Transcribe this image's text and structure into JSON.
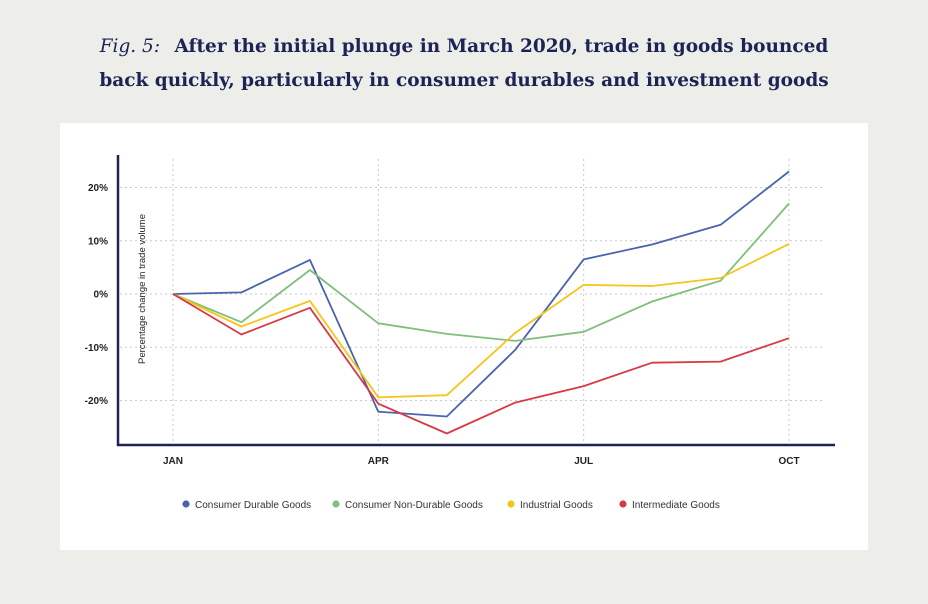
{
  "header": {
    "fig_label": "Fig. 5:",
    "title_line1": "After the initial plunge in March 2020, trade in goods bounced",
    "title_line2": "back quickly, particularly in consumer durables and investment goods"
  },
  "chart_data": {
    "type": "line",
    "x": [
      0,
      1,
      2,
      3,
      4,
      5,
      6,
      7,
      8,
      9
    ],
    "x_ticks": [
      {
        "x": 0,
        "label": "JAN"
      },
      {
        "x": 3,
        "label": "APR"
      },
      {
        "x": 6,
        "label": "JUL"
      },
      {
        "x": 9,
        "label": "OCT"
      }
    ],
    "ylabel": "Percentage change in trade volume",
    "ylim": [
      -28.5,
      25.5
    ],
    "y_ticks": [
      {
        "y": 20,
        "label": "20%"
      },
      {
        "y": 10,
        "label": "10%"
      },
      {
        "y": 0,
        "label": "0%"
      },
      {
        "y": -10,
        "label": "-10%"
      },
      {
        "y": -20,
        "label": "-20%"
      }
    ],
    "grid": true,
    "legend_position": "bottom",
    "series": [
      {
        "name": "Consumer Durable Goods",
        "color": "#4a63ad",
        "values": [
          0,
          0.3,
          6.4,
          -22.1,
          -23.0,
          -10.5,
          6.5,
          9.3,
          13.0,
          23.0
        ]
      },
      {
        "name": "Consumer Non-Durable Goods",
        "color": "#7fbf7b",
        "values": [
          0,
          -5.3,
          4.5,
          -5.5,
          -7.5,
          -8.8,
          -7.1,
          -1.4,
          2.5,
          17.0
        ]
      },
      {
        "name": "Industrial Goods",
        "color": "#f5c518",
        "values": [
          0,
          -6.1,
          -1.3,
          -19.4,
          -19.0,
          -7.3,
          1.7,
          1.5,
          3.0,
          9.4
        ]
      },
      {
        "name": "Intermediate Goods",
        "color": "#d83a45",
        "values": [
          0,
          -7.6,
          -2.6,
          -20.6,
          -26.2,
          -20.4,
          -17.3,
          -12.9,
          -12.7,
          -8.3
        ]
      }
    ]
  }
}
